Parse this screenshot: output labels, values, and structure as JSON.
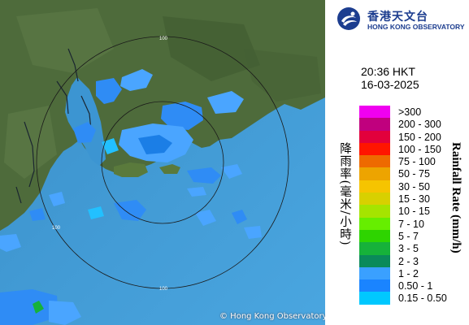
{
  "header": {
    "org_name_cn": "香港天文台",
    "org_name_en": "HONG KONG OBSERVATORY",
    "logo_icon": "hko-logo-icon"
  },
  "timestamp": {
    "time": "20:36 HKT",
    "date": "16-03-2025"
  },
  "legend": {
    "title_cn": "降雨率(毫米/小時)",
    "title_en": "Rainfall Rate (mm/h)",
    "items": [
      {
        "label": ">300",
        "color": "#f000f0"
      },
      {
        "label": "200 - 300",
        "color": "#c0007e"
      },
      {
        "label": "150 - 200",
        "color": "#e2003c"
      },
      {
        "label": "100 - 150",
        "color": "#ff1500"
      },
      {
        "label": "75 - 100",
        "color": "#ee6a00"
      },
      {
        "label": "50 - 75",
        "color": "#eda400"
      },
      {
        "label": "30 - 50",
        "color": "#f6c400"
      },
      {
        "label": "15 - 30",
        "color": "#d8d000"
      },
      {
        "label": "10 - 15",
        "color": "#a5e400"
      },
      {
        "label": "7 - 10",
        "color": "#66ee00"
      },
      {
        "label": "5 - 7",
        "color": "#2ed400"
      },
      {
        "label": "3 - 5",
        "color": "#16b23a"
      },
      {
        "label": "2 - 3",
        "color": "#0a8a5a"
      },
      {
        "label": "1 - 2",
        "color": "#3aa0ff"
      },
      {
        "label": "0.50 - 1",
        "color": "#1a84ff"
      },
      {
        "label": "0.15 - 0.50",
        "color": "#00c8ff"
      }
    ]
  },
  "map": {
    "ring_labels": [
      "100",
      "100",
      "100"
    ],
    "copyright": "© Hong Kong Observatory",
    "colors": {
      "sea": "#3d9ad8",
      "land": "#4c6a3a"
    }
  }
}
